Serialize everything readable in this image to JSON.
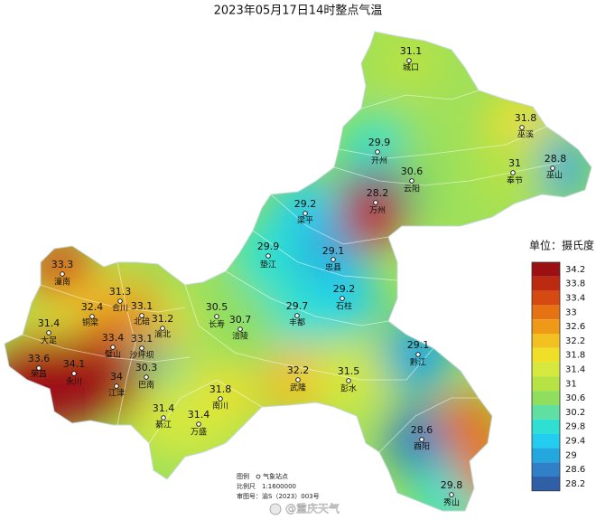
{
  "title": "2023年05月17日14时整点气温",
  "unit_label": "单位：摄氏度",
  "stations": [
    {
      "name": "城口",
      "value": 31.1
    },
    {
      "name": "巫溪",
      "value": 31.8
    },
    {
      "name": "开州",
      "value": 29.9
    },
    {
      "name": "巫山",
      "value": 28.8
    },
    {
      "name": "奉节",
      "value": 31
    },
    {
      "name": "云阳",
      "value": 30.6
    },
    {
      "name": "万州",
      "value": 28.2
    },
    {
      "name": "梁平",
      "value": 29.2
    },
    {
      "name": "垫江",
      "value": 29.9
    },
    {
      "name": "忠县",
      "value": 29.1
    },
    {
      "name": "石柱",
      "value": 29.2
    },
    {
      "name": "丰都",
      "value": 29.7
    },
    {
      "name": "长寿",
      "value": 30.5
    },
    {
      "name": "涪陵",
      "value": 30.7
    },
    {
      "name": "潼南",
      "value": 33.3
    },
    {
      "name": "合川",
      "value": 31.3
    },
    {
      "name": "北碚",
      "value": 33.1
    },
    {
      "name": "渝北",
      "value": 31.2
    },
    {
      "name": "铜梁",
      "value": 32.4
    },
    {
      "name": "大足",
      "value": 31.4
    },
    {
      "name": "璧山",
      "value": 33.4
    },
    {
      "name": "沙坪坝",
      "value": 33.1
    },
    {
      "name": "荣昌",
      "value": 33.6
    },
    {
      "name": "永川",
      "value": 34.1
    },
    {
      "name": "巴南",
      "value": 30.3
    },
    {
      "name": "江津",
      "value": 34
    },
    {
      "name": "武隆",
      "value": 32.2
    },
    {
      "name": "彭水",
      "value": 31.5
    },
    {
      "name": "黔江",
      "value": 29.1
    },
    {
      "name": "南川",
      "value": 31.8
    },
    {
      "name": "綦江",
      "value": 31.4
    },
    {
      "name": "万盛",
      "value": 31.4
    },
    {
      "name": "酉阳",
      "value": 28.6
    },
    {
      "name": "秀山",
      "value": 29.8
    }
  ],
  "legend": {
    "values": [
      34.2,
      33.8,
      33.4,
      33,
      32.6,
      32.2,
      31.8,
      31.4,
      31,
      30.6,
      30.2,
      29.8,
      29.4,
      29,
      28.6,
      28.2
    ],
    "colors": [
      "#9c0f12",
      "#bd2a12",
      "#d64a12",
      "#e67214",
      "#ee9a18",
      "#f3c022",
      "#efe027",
      "#d6e83e",
      "#b6e244",
      "#8fde5e",
      "#5fdfa2",
      "#2fe0d2",
      "#22cdef",
      "#23a7df",
      "#2f80c6",
      "#2f5fa6"
    ]
  },
  "footnote": {
    "legend_label": "图例",
    "legend_item": "气象站点",
    "scale_label": "比例尺",
    "scale_value": "1:1600000",
    "review_label": "审图号：",
    "review_value": "渝S（2023）003号"
  },
  "watermark": "@重庆天气"
}
